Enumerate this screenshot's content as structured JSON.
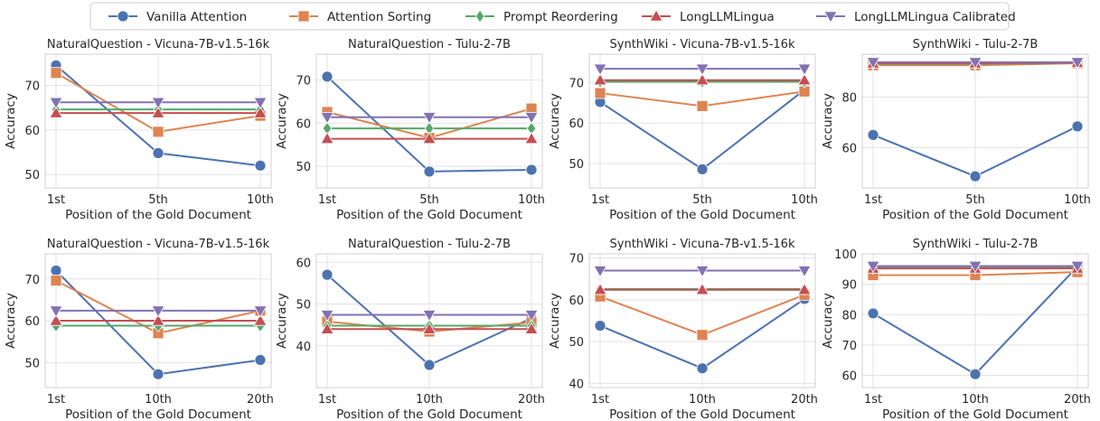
{
  "legend": {
    "placement": "top-center",
    "entries": [
      {
        "name": "Vanilla Attention",
        "color": "#4c72b0",
        "marker": "circle"
      },
      {
        "name": "Attention Sorting",
        "color": "#dd8452",
        "marker": "square"
      },
      {
        "name": "Prompt Reordering",
        "color": "#55a868",
        "marker": "diamond"
      },
      {
        "name": "LongLLMLingua",
        "color": "#c44e52",
        "marker": "triangle-up"
      },
      {
        "name": "LongLLMLingua Calibrated",
        "color": "#8172b3",
        "marker": "triangle-down"
      }
    ]
  },
  "chart_data": [
    {
      "type": "line",
      "title": "NaturalQuestion - Vicuna-7B-v1.5-16k",
      "xlabel": "Position of the Gold Document",
      "ylabel": "Accuracy",
      "categories": [
        "1st",
        "5th",
        "10th"
      ],
      "ylim": [
        47,
        77
      ],
      "yticks": [
        50,
        60,
        70
      ],
      "grid": true,
      "series": [
        {
          "name": "Vanilla Attention",
          "values": [
            74.5,
            54.8,
            52.0
          ]
        },
        {
          "name": "Attention Sorting",
          "values": [
            72.8,
            59.6,
            63.2
          ]
        },
        {
          "name": "Prompt Reordering",
          "values": [
            64.6,
            64.6,
            64.6
          ]
        },
        {
          "name": "LongLLMLingua",
          "values": [
            63.8,
            63.8,
            63.8
          ]
        },
        {
          "name": "LongLLMLingua Calibrated",
          "values": [
            66.2,
            66.2,
            66.2
          ]
        }
      ]
    },
    {
      "type": "line",
      "title": "NaturalQuestion - Tulu-2-7B",
      "xlabel": "Position of the Gold Document",
      "ylabel": "Accuracy",
      "categories": [
        "1st",
        "5th",
        "10th"
      ],
      "ylim": [
        45,
        76
      ],
      "yticks": [
        50,
        60,
        70
      ],
      "grid": true,
      "series": [
        {
          "name": "Vanilla Attention",
          "values": [
            70.8,
            48.8,
            49.2
          ]
        },
        {
          "name": "Attention Sorting",
          "values": [
            62.6,
            56.6,
            63.4
          ]
        },
        {
          "name": "Prompt Reordering",
          "values": [
            58.8,
            58.8,
            58.8
          ]
        },
        {
          "name": "LongLLMLingua",
          "values": [
            56.4,
            56.4,
            56.4
          ]
        },
        {
          "name": "LongLLMLingua Calibrated",
          "values": [
            61.4,
            61.4,
            61.4
          ]
        }
      ]
    },
    {
      "type": "line",
      "title": "SynthWiki - Vicuna-7B-v1.5-16k",
      "xlabel": "Position of the Gold Document",
      "ylabel": "Accuracy",
      "categories": [
        "1st",
        "5th",
        "10th"
      ],
      "ylim": [
        44,
        77
      ],
      "yticks": [
        50,
        60,
        70
      ],
      "grid": true,
      "series": [
        {
          "name": "Vanilla Attention",
          "values": [
            65.2,
            48.6,
            68.2
          ]
        },
        {
          "name": "Attention Sorting",
          "values": [
            67.4,
            64.2,
            67.8
          ]
        },
        {
          "name": "Prompt Reordering",
          "values": [
            70.2,
            70.2,
            70.2
          ]
        },
        {
          "name": "LongLLMLingua",
          "values": [
            70.6,
            70.6,
            70.6
          ]
        },
        {
          "name": "LongLLMLingua Calibrated",
          "values": [
            73.4,
            73.4,
            73.4
          ]
        }
      ]
    },
    {
      "type": "line",
      "title": "SynthWiki - Tulu-2-7B",
      "xlabel": "Position of the Gold Document",
      "ylabel": "Accuracy",
      "categories": [
        "1st",
        "5th",
        "10th"
      ],
      "ylim": [
        44,
        97
      ],
      "yticks": [
        60,
        80
      ],
      "grid": true,
      "series": [
        {
          "name": "Vanilla Attention",
          "values": [
            65.0,
            48.6,
            68.4
          ]
        },
        {
          "name": "Attention Sorting",
          "values": [
            92.6,
            92.6,
            93.4
          ]
        },
        {
          "name": "Prompt Reordering",
          "values": [
            93.2,
            93.2,
            93.6
          ]
        },
        {
          "name": "LongLLMLingua",
          "values": [
            93.4,
            93.4,
            93.6
          ]
        },
        {
          "name": "LongLLMLingua Calibrated",
          "values": [
            93.8,
            93.8,
            93.8
          ]
        }
      ]
    },
    {
      "type": "line",
      "title": "NaturalQuestion - Vicuna-7B-v1.5-16k",
      "xlabel": "Position of the Gold Document",
      "ylabel": "Accuracy",
      "categories": [
        "1st",
        "10th",
        "20th"
      ],
      "ylim": [
        44,
        76
      ],
      "yticks": [
        50,
        60,
        70
      ],
      "grid": true,
      "series": [
        {
          "name": "Vanilla Attention",
          "values": [
            72.0,
            47.2,
            50.6
          ]
        },
        {
          "name": "Attention Sorting",
          "values": [
            69.6,
            57.0,
            62.4
          ]
        },
        {
          "name": "Prompt Reordering",
          "values": [
            58.8,
            58.8,
            58.8
          ]
        },
        {
          "name": "LongLLMLingua",
          "values": [
            60.0,
            60.0,
            60.0
          ]
        },
        {
          "name": "LongLLMLingua Calibrated",
          "values": [
            62.4,
            62.4,
            62.4
          ]
        }
      ]
    },
    {
      "type": "line",
      "title": "NaturalQuestion - Tulu-2-7B",
      "xlabel": "Position of the Gold Document",
      "ylabel": "Accuracy",
      "categories": [
        "1st",
        "10th",
        "20th"
      ],
      "ylim": [
        30,
        62
      ],
      "yticks": [
        40,
        50,
        60
      ],
      "grid": true,
      "series": [
        {
          "name": "Vanilla Attention",
          "values": [
            57.0,
            35.4,
            46.6
          ]
        },
        {
          "name": "Attention Sorting",
          "values": [
            45.8,
            43.4,
            45.6
          ]
        },
        {
          "name": "Prompt Reordering",
          "values": [
            44.8,
            44.8,
            44.8
          ]
        },
        {
          "name": "LongLLMLingua",
          "values": [
            44.0,
            44.0,
            44.0
          ]
        },
        {
          "name": "LongLLMLingua Calibrated",
          "values": [
            47.4,
            47.4,
            47.4
          ]
        }
      ]
    },
    {
      "type": "line",
      "title": "SynthWiki - Vicuna-7B-v1.5-16k",
      "xlabel": "Position of the Gold Document",
      "ylabel": "Accuracy",
      "categories": [
        "1st",
        "10th",
        "20th"
      ],
      "ylim": [
        39,
        71
      ],
      "yticks": [
        40,
        50,
        60,
        70
      ],
      "grid": true,
      "series": [
        {
          "name": "Vanilla Attention",
          "values": [
            53.8,
            43.6,
            60.2
          ]
        },
        {
          "name": "Attention Sorting",
          "values": [
            60.8,
            51.6,
            61.2
          ]
        },
        {
          "name": "Prompt Reordering",
          "values": [
            62.6,
            62.6,
            62.6
          ]
        },
        {
          "name": "LongLLMLingua",
          "values": [
            62.4,
            62.4,
            62.4
          ]
        },
        {
          "name": "LongLLMLingua Calibrated",
          "values": [
            67.0,
            67.0,
            67.0
          ]
        }
      ]
    },
    {
      "type": "line",
      "title": "SynthWiki - Tulu-2-7B",
      "xlabel": "Position of the Gold Document",
      "ylabel": "Accuracy",
      "categories": [
        "1st",
        "10th",
        "20th"
      ],
      "ylim": [
        56,
        100
      ],
      "yticks": [
        60,
        70,
        80,
        90,
        100
      ],
      "grid": true,
      "series": [
        {
          "name": "Vanilla Attention",
          "values": [
            80.4,
            60.4,
            95.8
          ]
        },
        {
          "name": "Attention Sorting",
          "values": [
            93.0,
            93.0,
            94.0
          ]
        },
        {
          "name": "Prompt Reordering",
          "values": [
            95.4,
            95.4,
            95.4
          ]
        },
        {
          "name": "LongLLMLingua",
          "values": [
            95.2,
            95.2,
            95.2
          ]
        },
        {
          "name": "LongLLMLingua Calibrated",
          "values": [
            96.0,
            96.0,
            96.0
          ]
        }
      ]
    }
  ]
}
